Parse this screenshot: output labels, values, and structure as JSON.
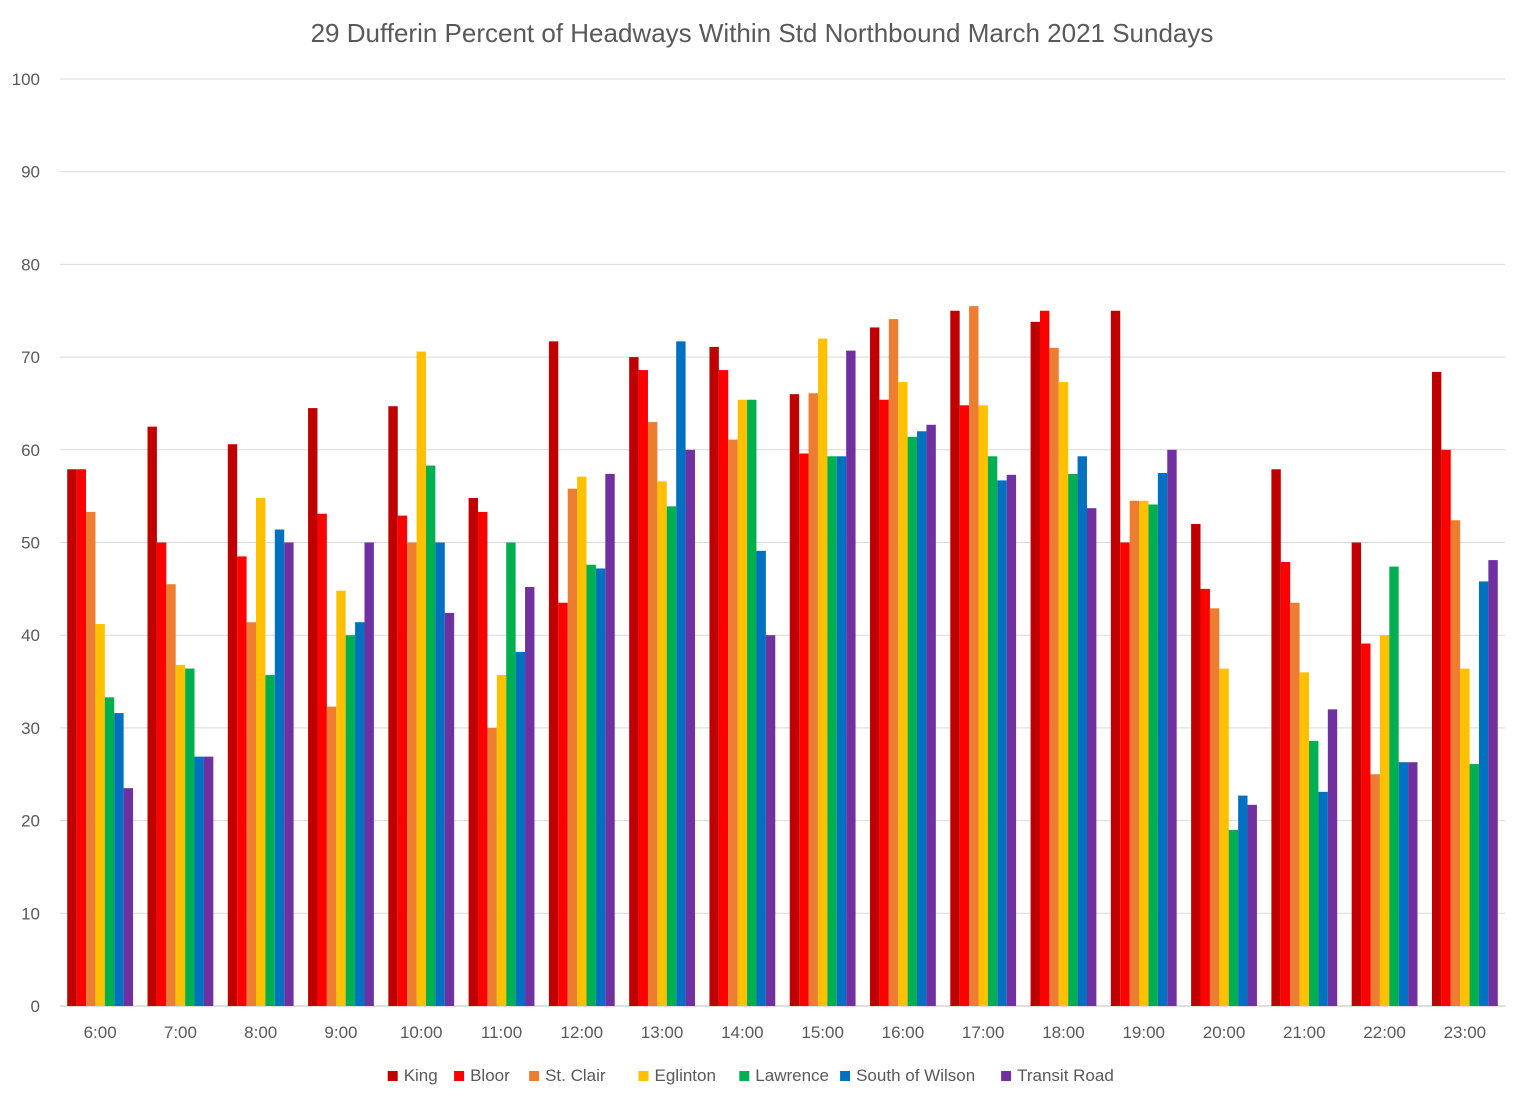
{
  "chart_data": {
    "type": "bar",
    "title": "29 Dufferin  Percent of Headways Within Std Northbound March 2021 Sundays",
    "xlabel": "",
    "ylabel": "",
    "ylim": [
      0,
      100
    ],
    "yticks": [
      0,
      10,
      20,
      30,
      40,
      50,
      60,
      70,
      80,
      90,
      100
    ],
    "grid": true,
    "legend_position": "bottom",
    "categories": [
      "6:00",
      "7:00",
      "8:00",
      "9:00",
      "10:00",
      "11:00",
      "12:00",
      "13:00",
      "14:00",
      "15:00",
      "16:00",
      "17:00",
      "18:00",
      "19:00",
      "20:00",
      "21:00",
      "22:00",
      "23:00"
    ],
    "series": [
      {
        "name": "King",
        "color": "#c00000",
        "values": [
          57.9,
          62.5,
          60.6,
          64.5,
          64.7,
          54.8,
          71.7,
          70.0,
          71.1,
          66.0,
          73.2,
          75.0,
          73.8,
          75.0,
          52.0,
          57.9,
          50.0,
          68.4
        ]
      },
      {
        "name": "Bloor",
        "color": "#ff0000",
        "values": [
          57.9,
          50.0,
          48.5,
          53.1,
          52.9,
          53.3,
          43.5,
          68.6,
          68.6,
          59.6,
          65.4,
          64.8,
          75.0,
          50.0,
          45.0,
          47.9,
          39.1,
          60.0
        ]
      },
      {
        "name": "St. Clair",
        "color": "#ed7d31",
        "values": [
          53.3,
          45.5,
          41.4,
          32.3,
          50.0,
          30.0,
          55.8,
          63.0,
          61.1,
          66.1,
          74.1,
          75.5,
          71.0,
          54.5,
          42.9,
          43.5,
          25.0,
          52.4
        ]
      },
      {
        "name": "Eglinton",
        "color": "#ffc000",
        "values": [
          41.2,
          36.8,
          54.8,
          44.8,
          70.6,
          35.7,
          57.1,
          56.6,
          65.4,
          72.0,
          67.3,
          64.8,
          67.3,
          54.5,
          36.4,
          36.0,
          40.0,
          36.4
        ]
      },
      {
        "name": "Lawrence",
        "color": "#00b050",
        "values": [
          33.3,
          36.4,
          35.7,
          40.0,
          58.3,
          50.0,
          47.6,
          53.9,
          65.4,
          59.3,
          61.4,
          59.3,
          57.4,
          54.1,
          19.0,
          28.6,
          47.4,
          26.1
        ]
      },
      {
        "name": "South of Wilson",
        "color": "#0070c0",
        "values": [
          31.6,
          26.9,
          51.4,
          41.4,
          50.0,
          38.2,
          47.2,
          71.7,
          49.1,
          59.3,
          62.0,
          56.7,
          59.3,
          57.5,
          22.7,
          23.1,
          26.3,
          45.8
        ]
      },
      {
        "name": "Transit Road",
        "color": "#7030a0",
        "values": [
          23.5,
          26.9,
          50.0,
          50.0,
          42.4,
          45.2,
          57.4,
          60.0,
          40.0,
          70.7,
          62.7,
          57.3,
          53.7,
          60.0,
          21.7,
          32.0,
          26.3,
          48.1
        ]
      }
    ]
  }
}
